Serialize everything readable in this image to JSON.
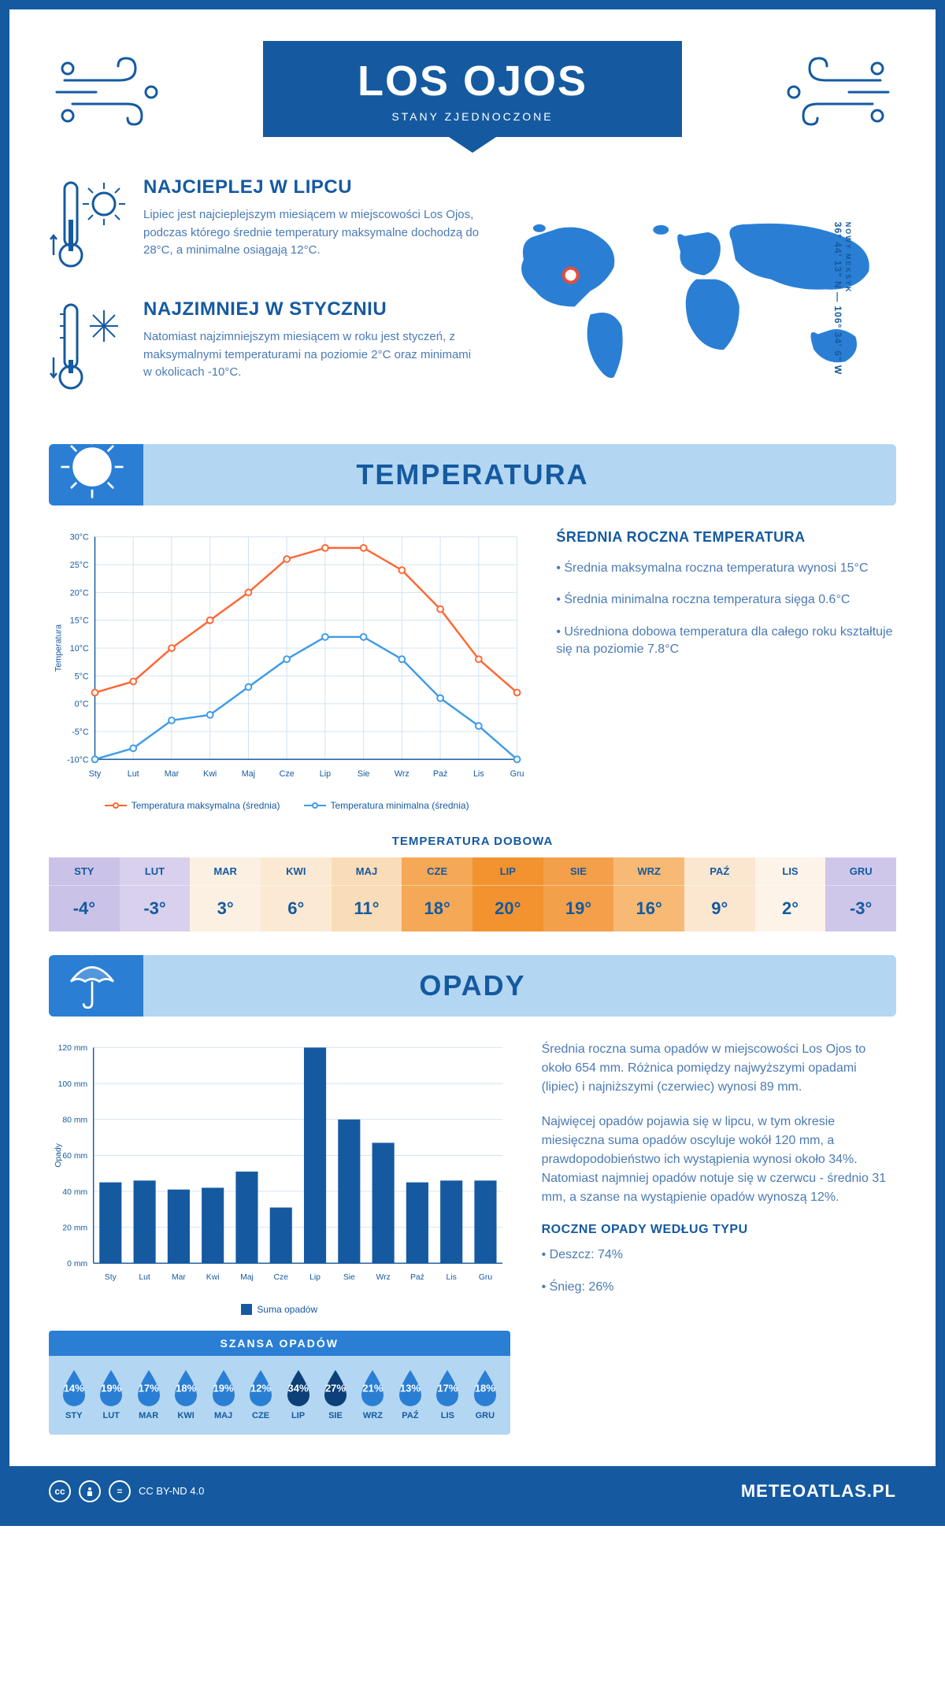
{
  "header": {
    "title": "LOS OJOS",
    "subtitle": "STANY ZJEDNOCZONE"
  },
  "coords": {
    "lat": "36° 44' 13\" N",
    "lon": "106° 34' 6\" W",
    "region": "NOWY MEKSYK"
  },
  "intro": {
    "hot": {
      "heading": "NAJCIEPLEJ W LIPCU",
      "text": "Lipiec jest najcieplejszym miesiącem w miejscowości Los Ojos, podczas którego średnie temperatury maksymalne dochodzą do 28°C, a minimalne osiągają 12°C."
    },
    "cold": {
      "heading": "NAJZIMNIEJ W STYCZNIU",
      "text": "Natomiast najzimniejszym miesiącem w roku jest styczeń, z maksymalnymi temperaturami na poziomie 2°C oraz minimami w okolicach -10°C."
    }
  },
  "sections": {
    "temperature": "TEMPERATURA",
    "precipitation": "OPADY"
  },
  "months_short": [
    "Sty",
    "Lut",
    "Mar",
    "Kwi",
    "Maj",
    "Cze",
    "Lip",
    "Sie",
    "Wrz",
    "Paź",
    "Lis",
    "Gru"
  ],
  "months_upper": [
    "STY",
    "LUT",
    "MAR",
    "KWI",
    "MAJ",
    "CZE",
    "LIP",
    "SIE",
    "WRZ",
    "PAŹ",
    "LIS",
    "GRU"
  ],
  "temp_chart": {
    "type": "line",
    "ylabel": "Temperatura",
    "ylim": [
      -10,
      30
    ],
    "ytick_step": 5,
    "y_unit": "°C",
    "grid_color": "#d0e2f2",
    "axis_color": "#155aa0",
    "series": [
      {
        "name": "max",
        "label": "Temperatura maksymalna (średnia)",
        "color": "#ff6633",
        "values": [
          2,
          4,
          10,
          15,
          20,
          26,
          28,
          28,
          24,
          17,
          8,
          2
        ]
      },
      {
        "name": "min",
        "label": "Temperatura minimalna (średnia)",
        "color": "#3f9be8",
        "values": [
          -10,
          -8,
          -3,
          -2,
          3,
          8,
          12,
          12,
          8,
          1,
          -4,
          -10
        ]
      }
    ]
  },
  "avg_annual": {
    "heading": "ŚREDNIA ROCZNA TEMPERATURA",
    "bullets": [
      "Średnia maksymalna roczna temperatura wynosi 15°C",
      "Średnia minimalna roczna temperatura sięga 0.6°C",
      "Uśredniona dobowa temperatura dla całego roku kształtuje się na poziomie 7.8°C"
    ]
  },
  "daily_temp": {
    "title": "TEMPERATURA DOBOWA",
    "values": [
      -4,
      -3,
      3,
      6,
      11,
      18,
      20,
      19,
      16,
      9,
      2,
      -3
    ],
    "suffix": "°",
    "colors": [
      "#cbc2e8",
      "#d8d0ec",
      "#fcf0e2",
      "#fbe9d3",
      "#f9dcb8",
      "#f5a856",
      "#f29330",
      "#f4a04a",
      "#f7b973",
      "#fbe7cf",
      "#fdf3e8",
      "#cfc7e9"
    ]
  },
  "precip_chart": {
    "type": "bar",
    "ylabel": "Opady",
    "ylim": [
      0,
      120
    ],
    "ytick_step": 20,
    "y_unit": " mm",
    "bar_color": "#155aa0",
    "grid_color": "#d0e2f2",
    "values": [
      45,
      46,
      41,
      42,
      51,
      31,
      120,
      80,
      67,
      45,
      46,
      46
    ],
    "legend": "Suma opadów"
  },
  "precip_text": {
    "p1": "Średnia roczna suma opadów w miejscowości Los Ojos to około 654 mm. Różnica pomiędzy najwyższymi opadami (lipiec) i najniższymi (czerwiec) wynosi 89 mm.",
    "p2": "Najwięcej opadów pojawia się w lipcu, w tym okresie miesięczna suma opadów oscyluje wokół 120 mm, a prawdopodobieństwo ich wystąpienia wynosi około 34%. Natomiast najmniej opadów notuje się w czerwcu - średnio 31 mm, a szanse na wystąpienie opadów wynoszą 12%."
  },
  "chance": {
    "title": "SZANSA OPADÓW",
    "values": [
      14,
      19,
      17,
      18,
      19,
      12,
      34,
      27,
      21,
      13,
      17,
      18
    ],
    "suffix": "%",
    "light_color": "#2a7fd4",
    "dark_color": "#0d3f78",
    "threshold": 25
  },
  "precip_type": {
    "heading": "ROCZNE OPADY WEDŁUG TYPU",
    "bullets": [
      "Deszcz: 74%",
      "Śnieg: 26%"
    ]
  },
  "footer": {
    "license": "CC BY-ND 4.0",
    "site": "METEOATLAS.PL"
  }
}
